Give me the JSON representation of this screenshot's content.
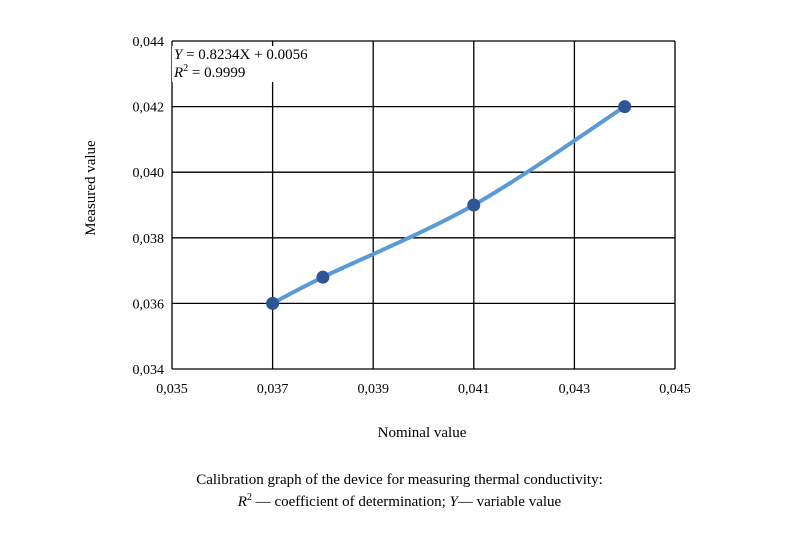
{
  "chart_data": {
    "type": "line",
    "title": "",
    "xlabel": "Nominal value",
    "ylabel": "Measured value",
    "xlim": [
      0.035,
      0.045
    ],
    "ylim": [
      0.034,
      0.044
    ],
    "x_ticks": [
      "0,035",
      "0,037",
      "0,039",
      "0,041",
      "0,043",
      "0,045"
    ],
    "y_ticks": [
      "0,034",
      "0,036",
      "0,038",
      "0,040",
      "0,042",
      "0,044"
    ],
    "grid": true,
    "smooth": true,
    "series": [
      {
        "x": [
          0.037,
          0.038,
          0.041,
          0.044
        ],
        "y": [
          0.036,
          0.0368,
          0.039,
          0.042
        ],
        "line_color": "#5b9bd5",
        "marker_color": "#2f5597"
      }
    ],
    "annotation": {
      "equation_var": "Y",
      "equation_rest": " = 0.8234X + 0.0056",
      "r2_var": "R",
      "r2_sup": "2",
      "r2_rest": " = 0.9999"
    }
  },
  "caption": {
    "line1": "Calibration graph of the device for measuring thermal conductivity:",
    "r_var": "R",
    "r_sup": "2",
    "line2_mid": " — coefficient of determination; ",
    "y_var": "Y",
    "line2_end": "— variable value"
  }
}
